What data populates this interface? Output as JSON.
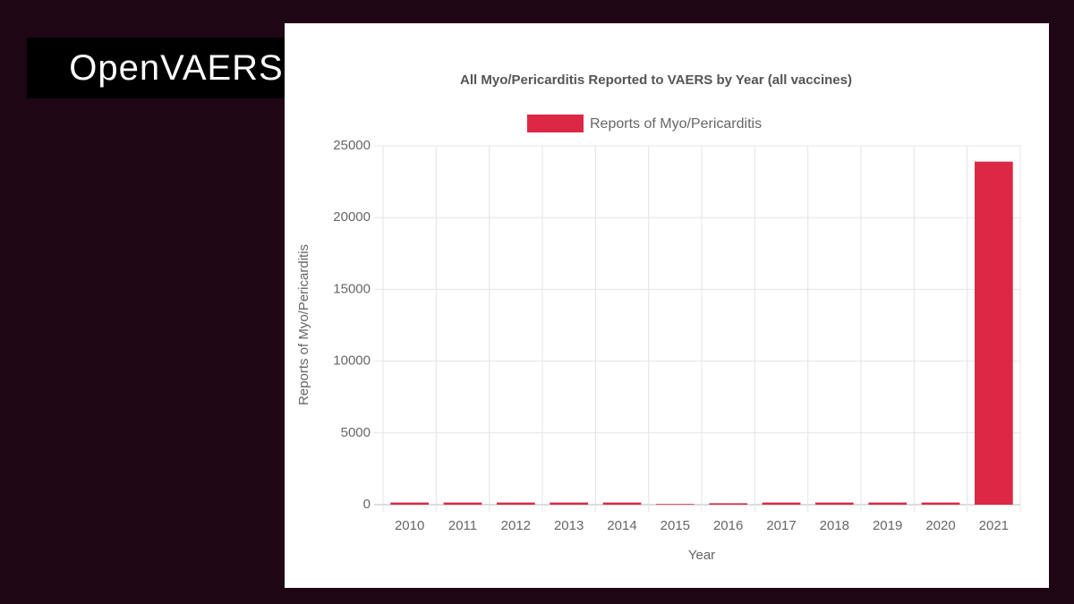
{
  "header": {
    "logo": "OpenVAERS"
  },
  "chart_data": {
    "type": "bar",
    "title": "All Myo/Pericarditis Reported to VAERS by Year (all vaccines)",
    "x_label": "Year",
    "y_label": "Reports of Myo/Pericarditis",
    "categories": [
      "2010",
      "2011",
      "2012",
      "2013",
      "2014",
      "2015",
      "2016",
      "2017",
      "2018",
      "2019",
      "2020",
      "2021"
    ],
    "series": [
      {
        "name": "Reports of Myo/Pericarditis",
        "color": "#dc2845",
        "values": [
          150,
          150,
          150,
          150,
          150,
          50,
          100,
          150,
          150,
          150,
          150,
          23900
        ]
      }
    ],
    "ylim": [
      0,
      25000
    ],
    "yticks": [
      0,
      5000,
      10000,
      15000,
      20000,
      25000
    ],
    "grid": true,
    "legend": "top"
  }
}
